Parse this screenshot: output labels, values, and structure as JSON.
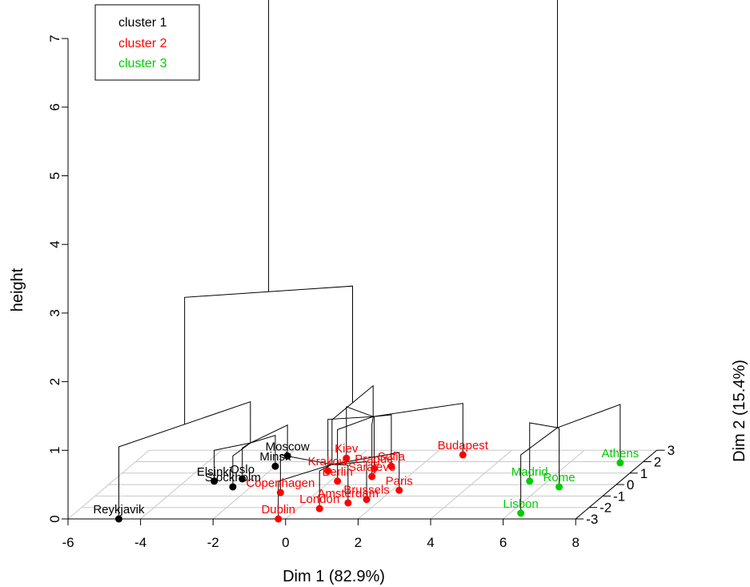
{
  "chart_data": {
    "type": "scatter",
    "subtype": "3d-cluster-dendrogram",
    "xlabel": "Dim 1 (82.9%)",
    "ylabel": "Dim 2 (15.4%)",
    "zlabel": "height",
    "x_ticks": [
      -6,
      -4,
      -2,
      0,
      2,
      4,
      6,
      8
    ],
    "y_ticks": [
      -3,
      -2,
      -1,
      0,
      1,
      2,
      3
    ],
    "z_ticks": [
      0,
      1,
      2,
      3,
      4,
      5,
      6,
      7
    ],
    "xlim": [
      -6,
      8
    ],
    "ylim": [
      -3,
      3
    ],
    "zlim": [
      0,
      7
    ],
    "grid": true,
    "legend_position": "top-left",
    "clusters": [
      {
        "name": "cluster 1",
        "color": "#000000"
      },
      {
        "name": "cluster 2",
        "color": "#ff0000"
      },
      {
        "name": "cluster 3",
        "color": "#00cd00"
      }
    ],
    "points": [
      {
        "label": "Reykjavik",
        "x": -4.6,
        "y": -3.0,
        "cluster": 1
      },
      {
        "label": "Elsinki",
        "x": -3.2,
        "y": 0.3,
        "cluster": 1
      },
      {
        "label": "Stockholm",
        "x": -2.5,
        "y": -0.2,
        "cluster": 1
      },
      {
        "label": "Oslo",
        "x": -2.5,
        "y": 0.5,
        "cluster": 1
      },
      {
        "label": "Minsk",
        "x": -2.0,
        "y": 1.6,
        "cluster": 1
      },
      {
        "label": "Moscow",
        "x": -2.0,
        "y": 2.5,
        "cluster": 1
      },
      {
        "label": "Kiev",
        "x": -0.3,
        "y": 2.3,
        "cluster": 2
      },
      {
        "label": "Krakow",
        "x": -0.4,
        "y": 1.2,
        "cluster": 2
      },
      {
        "label": "Prague",
        "x": 0.8,
        "y": 1.4,
        "cluster": 2
      },
      {
        "label": "Sofia",
        "x": 1.2,
        "y": 1.6,
        "cluster": 2
      },
      {
        "label": "Sarajevo",
        "x": 1.0,
        "y": 0.7,
        "cluster": 2
      },
      {
        "label": "Berlin",
        "x": 0.2,
        "y": 0.3,
        "cluster": 2
      },
      {
        "label": "Budapest",
        "x": 2.8,
        "y": 2.6,
        "cluster": 2
      },
      {
        "label": "Copenhagen",
        "x": -1.0,
        "y": -0.7,
        "cluster": 2
      },
      {
        "label": "Dublin",
        "x": -0.2,
        "y": -3.0,
        "cluster": 2
      },
      {
        "label": "London",
        "x": 0.6,
        "y": -2.1,
        "cluster": 2
      },
      {
        "label": "Amsterdam",
        "x": 1.2,
        "y": -1.6,
        "cluster": 2
      },
      {
        "label": "Brussels",
        "x": 1.6,
        "y": -1.3,
        "cluster": 2
      },
      {
        "label": "Paris",
        "x": 2.2,
        "y": -0.5,
        "cluster": 2
      },
      {
        "label": "Madrid",
        "x": 5.5,
        "y": 0.3,
        "cluster": 3
      },
      {
        "label": "Rome",
        "x": 6.5,
        "y": -0.2,
        "cluster": 3
      },
      {
        "label": "Lisbon",
        "x": 6.3,
        "y": -2.5,
        "cluster": 3
      },
      {
        "label": "Athens",
        "x": 7.4,
        "y": 1.9,
        "cluster": 3
      }
    ],
    "merge_heights": [
      0.9,
      1.05,
      1.2,
      0.7,
      0.95,
      2.9,
      7.3
    ]
  }
}
